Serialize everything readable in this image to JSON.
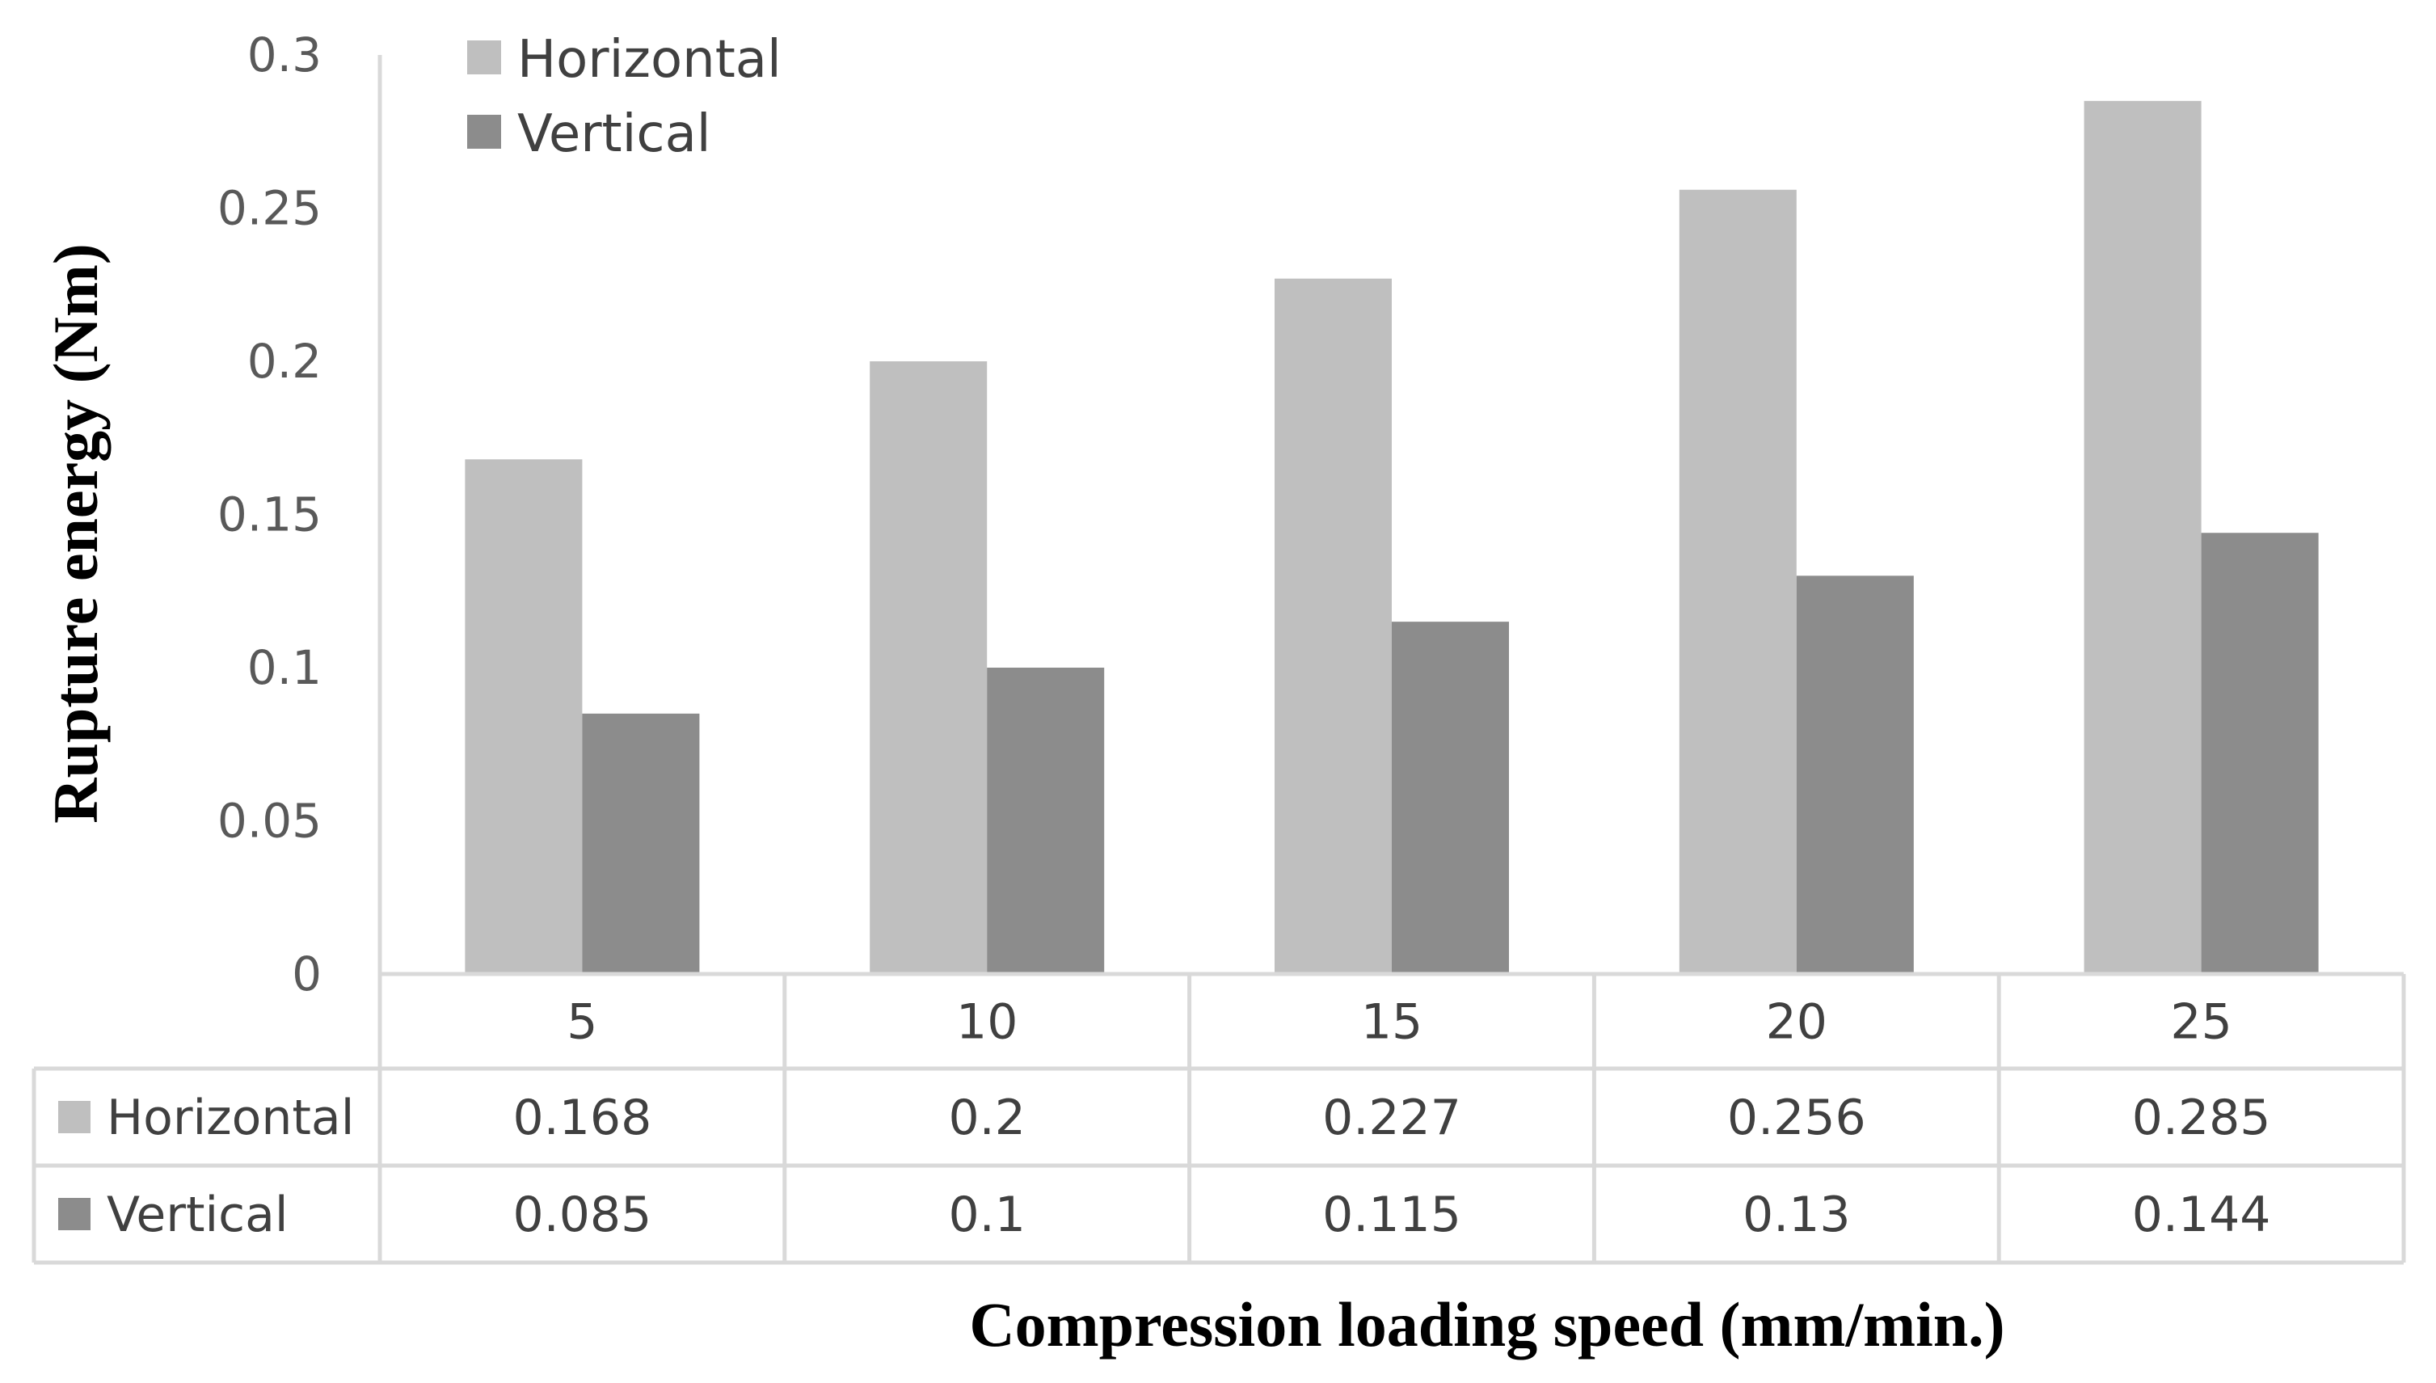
{
  "chart_data": {
    "type": "bar",
    "title": "",
    "xlabel": "Compression loading speed (mm/min.)",
    "ylabel": "Rupture energy (Nm)",
    "categories": [
      "5",
      "10",
      "15",
      "20",
      "25"
    ],
    "series": [
      {
        "name": "Horizontal",
        "color": "#bfbfbf",
        "values": [
          0.168,
          0.2,
          0.227,
          0.256,
          0.285
        ],
        "labels": [
          "0.168",
          "0.2",
          "0.227",
          "0.256",
          "0.285"
        ]
      },
      {
        "name": "Vertical",
        "color": "#8c8c8c",
        "values": [
          0.085,
          0.1,
          0.115,
          0.13,
          0.144
        ],
        "labels": [
          "0.085",
          "0.1",
          "0.115",
          "0.13",
          "0.144"
        ]
      }
    ],
    "ylim": [
      0,
      0.3
    ],
    "yticks": [
      "0",
      "0.05",
      "0.1",
      "0.15",
      "0.2",
      "0.25",
      "0.3"
    ],
    "legend_position": "top-left",
    "data_table": true,
    "grid": false
  }
}
